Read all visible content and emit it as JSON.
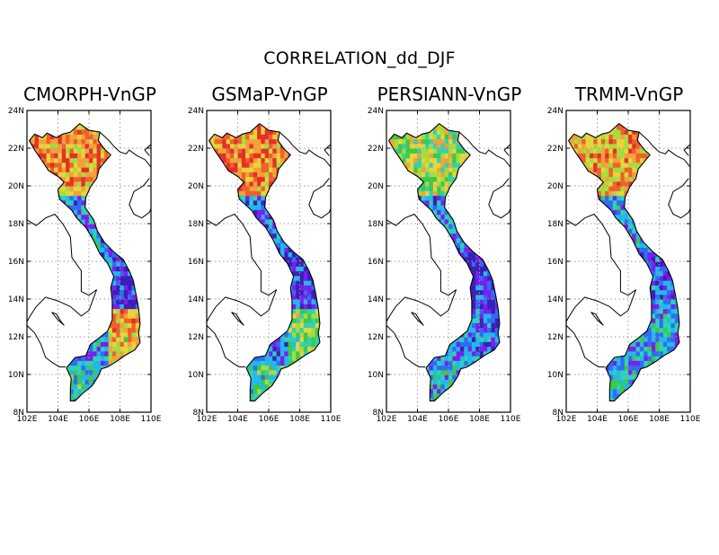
{
  "figure": {
    "title": "CORRELATION_dd_DJF"
  },
  "panels": [
    {
      "title": "CMORPH-VnGP",
      "scheme": "cmorph"
    },
    {
      "title": "GSMaP-VnGP",
      "scheme": "gsmap"
    },
    {
      "title": "PERSIANN-VnGP",
      "scheme": "persiann"
    },
    {
      "title": "TRMM-VnGP",
      "scheme": "trmm"
    }
  ],
  "axes": {
    "x_ticks": [
      "102E",
      "104E",
      "106E",
      "108E",
      "110E"
    ],
    "y_ticks": [
      "24N",
      "22N",
      "20N",
      "18N",
      "16N",
      "14N",
      "12N",
      "10N",
      "8N"
    ],
    "lon_range": [
      102,
      110
    ],
    "lat_range": [
      8,
      24
    ],
    "grid": "dotted"
  },
  "colors": {
    "palette": [
      "#e53026",
      "#f0602a",
      "#f5a03a",
      "#e7d43e",
      "#a6dc3e",
      "#3ec84a",
      "#2ed3b4",
      "#22b8ec",
      "#2f6df3",
      "#7c1ef0",
      "#3d1fb8"
    ]
  }
}
